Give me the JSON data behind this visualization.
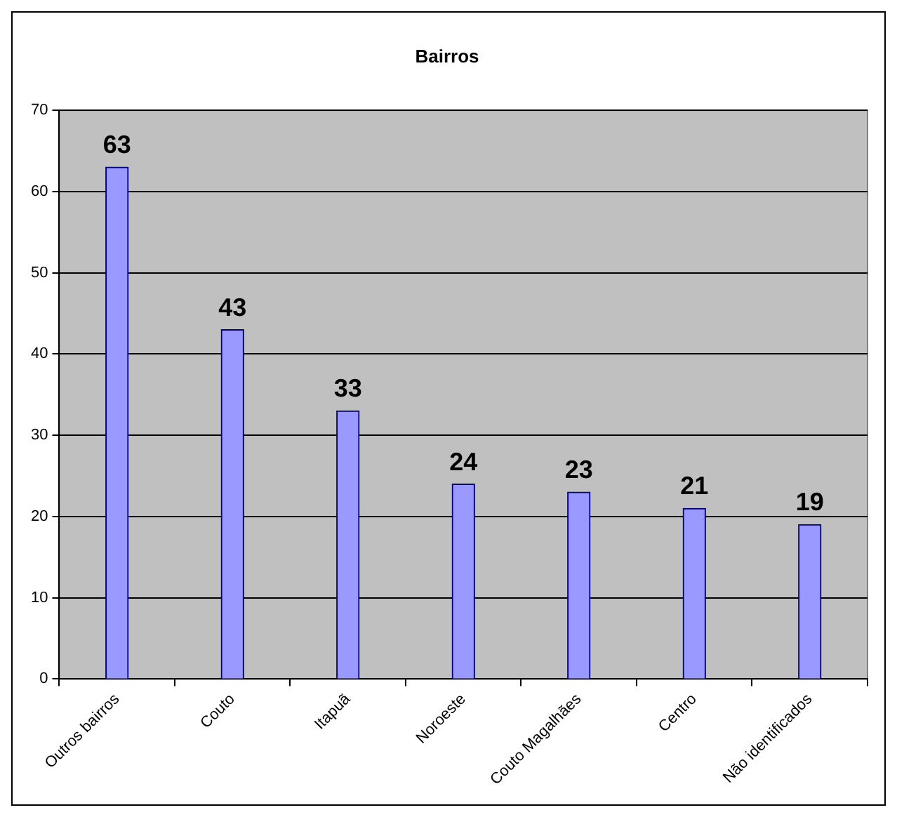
{
  "chart_data": {
    "type": "bar",
    "title": "Bairros",
    "categories": [
      "Outros bairros",
      "Couto",
      "Itapuã",
      "Noroeste",
      "Couto Magalhães",
      "Centro",
      "Não identificados"
    ],
    "values": [
      63,
      43,
      33,
      24,
      23,
      21,
      19
    ],
    "color": "#9999ff",
    "ylim": [
      0,
      70
    ],
    "yticks": [
      0,
      10,
      20,
      30,
      40,
      50,
      60,
      70
    ],
    "grid": "y",
    "data_labels": true
  }
}
